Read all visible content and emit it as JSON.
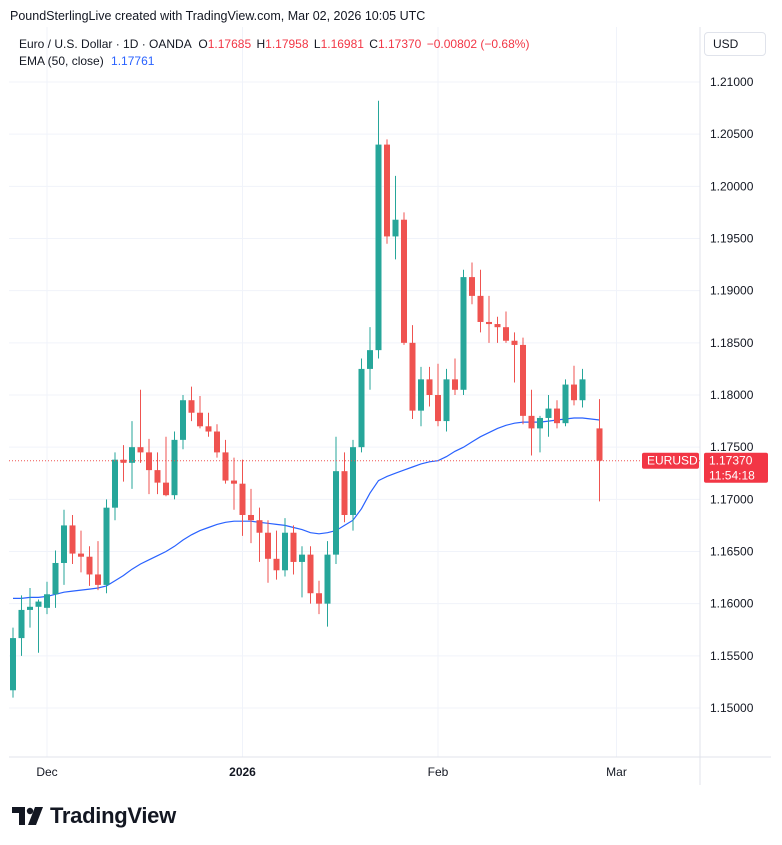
{
  "header": {
    "text": "PoundSterlingLive created with TradingView.com, Mar 02, 2026 10:05 UTC"
  },
  "legend": {
    "symbol": "Euro / U.S. Dollar · 1D · OANDA",
    "o_label": "O",
    "o_value": "1.17685",
    "h_label": "H",
    "h_value": "1.17958",
    "l_label": "L",
    "l_value": "1.16981",
    "c_label": "C",
    "c_value": "1.17370",
    "change": "−0.00802 (−0.68%)",
    "ema_label": "EMA (50, close)",
    "ema_value": "1.17761"
  },
  "currency_button": "USD",
  "price_tag": {
    "symbol": "EURUSD",
    "price": "1.17370",
    "countdown": "11:54:18"
  },
  "logo_text": "TradingView",
  "colors": {
    "up": "#26a69a",
    "down": "#ef5350",
    "ema": "#2962ff",
    "grid": "#f0f3fa"
  },
  "chart_data": {
    "type": "candlestick",
    "title": "Euro / U.S. Dollar · 1D · OANDA",
    "ylim": [
      1.1455,
      1.2155
    ],
    "y_ticks": [
      "1.21000",
      "1.20500",
      "1.20000",
      "1.19500",
      "1.19000",
      "1.18500",
      "1.18000",
      "1.17500",
      "1.17000",
      "1.16500",
      "1.16000",
      "1.15500",
      "1.15000"
    ],
    "x_ticks": [
      {
        "label": "Dec",
        "bold": false,
        "index": 4
      },
      {
        "label": "2026",
        "bold": true,
        "index": 27
      },
      {
        "label": "Feb",
        "bold": false,
        "index": 50
      },
      {
        "label": "Mar",
        "bold": false,
        "index": 71
      }
    ],
    "grid": true,
    "candles": [
      [
        1.1517,
        1.1577,
        1.151,
        1.1567
      ],
      [
        1.1567,
        1.1608,
        1.155,
        1.1594
      ],
      [
        1.1594,
        1.1615,
        1.1577,
        1.1597
      ],
      [
        1.1597,
        1.1604,
        1.1553,
        1.1602
      ],
      [
        1.1596,
        1.1621,
        1.159,
        1.1609
      ],
      [
        1.1609,
        1.1651,
        1.1596,
        1.1639
      ],
      [
        1.1639,
        1.169,
        1.1618,
        1.1675
      ],
      [
        1.1675,
        1.1685,
        1.1638,
        1.1648
      ],
      [
        1.1648,
        1.167,
        1.163,
        1.1645
      ],
      [
        1.1645,
        1.1655,
        1.1617,
        1.1628
      ],
      [
        1.1628,
        1.166,
        1.1613,
        1.1618
      ],
      [
        1.1618,
        1.17,
        1.161,
        1.1692
      ],
      [
        1.1692,
        1.1745,
        1.168,
        1.1738
      ],
      [
        1.1738,
        1.1752,
        1.1717,
        1.1735
      ],
      [
        1.1735,
        1.1775,
        1.171,
        1.175
      ],
      [
        1.175,
        1.1805,
        1.1735,
        1.1745
      ],
      [
        1.1745,
        1.1758,
        1.1705,
        1.1728
      ],
      [
        1.1728,
        1.1745,
        1.1705,
        1.1716
      ],
      [
        1.1716,
        1.176,
        1.1703,
        1.1704
      ],
      [
        1.1704,
        1.1765,
        1.17,
        1.1757
      ],
      [
        1.1757,
        1.18,
        1.1748,
        1.1795
      ],
      [
        1.1795,
        1.1808,
        1.1775,
        1.1783
      ],
      [
        1.1783,
        1.1799,
        1.1768,
        1.177
      ],
      [
        1.177,
        1.1783,
        1.176,
        1.1765
      ],
      [
        1.1765,
        1.1772,
        1.174,
        1.1745
      ],
      [
        1.1745,
        1.1757,
        1.1715,
        1.1718
      ],
      [
        1.1718,
        1.174,
        1.169,
        1.1715
      ],
      [
        1.1715,
        1.1738,
        1.1665,
        1.1685
      ],
      [
        1.1685,
        1.171,
        1.1658,
        1.168
      ],
      [
        1.168,
        1.1692,
        1.164,
        1.1668
      ],
      [
        1.1668,
        1.168,
        1.162,
        1.1643
      ],
      [
        1.1643,
        1.167,
        1.1623,
        1.1632
      ],
      [
        1.1632,
        1.1682,
        1.1626,
        1.1668
      ],
      [
        1.1668,
        1.1675,
        1.1628,
        1.164
      ],
      [
        1.164,
        1.1655,
        1.1606,
        1.1647
      ],
      [
        1.1647,
        1.1655,
        1.16,
        1.161
      ],
      [
        1.161,
        1.1622,
        1.159,
        1.16
      ],
      [
        1.16,
        1.166,
        1.1578,
        1.1647
      ],
      [
        1.1647,
        1.176,
        1.1638,
        1.1727
      ],
      [
        1.1727,
        1.1745,
        1.1678,
        1.1685
      ],
      [
        1.1685,
        1.1757,
        1.167,
        1.175
      ],
      [
        1.175,
        1.1835,
        1.1745,
        1.1825
      ],
      [
        1.1825,
        1.1865,
        1.1805,
        1.1843
      ],
      [
        1.1843,
        1.2082,
        1.1835,
        1.204
      ],
      [
        1.204,
        1.2045,
        1.1945,
        1.1952
      ],
      [
        1.1952,
        1.201,
        1.193,
        1.1968
      ],
      [
        1.1968,
        1.1975,
        1.1848,
        1.185
      ],
      [
        1.185,
        1.1867,
        1.1777,
        1.1785
      ],
      [
        1.1785,
        1.1827,
        1.177,
        1.1815
      ],
      [
        1.1815,
        1.1827,
        1.1789,
        1.18
      ],
      [
        1.18,
        1.183,
        1.177,
        1.1775
      ],
      [
        1.1775,
        1.1825,
        1.1765,
        1.1815
      ],
      [
        1.1815,
        1.1835,
        1.18,
        1.1805
      ],
      [
        1.1805,
        1.192,
        1.18,
        1.1913
      ],
      [
        1.1913,
        1.1927,
        1.1887,
        1.1895
      ],
      [
        1.1895,
        1.192,
        1.186,
        1.187
      ],
      [
        1.187,
        1.1895,
        1.185,
        1.1868
      ],
      [
        1.1868,
        1.1875,
        1.185,
        1.1865
      ],
      [
        1.1865,
        1.188,
        1.185,
        1.1852
      ],
      [
        1.1852,
        1.186,
        1.1812,
        1.1848
      ],
      [
        1.1848,
        1.1855,
        1.1772,
        1.178
      ],
      [
        1.178,
        1.1805,
        1.1742,
        1.1768
      ],
      [
        1.1768,
        1.178,
        1.1745,
        1.1778
      ],
      [
        1.1778,
        1.18,
        1.176,
        1.1787
      ],
      [
        1.1787,
        1.1795,
        1.1768,
        1.1773
      ],
      [
        1.1773,
        1.1815,
        1.177,
        1.181
      ],
      [
        1.181,
        1.1828,
        1.179,
        1.1795
      ],
      [
        1.1795,
        1.1825,
        1.1788,
        1.1815
      ],
      null,
      [
        1.1768,
        1.1796,
        1.1698,
        1.1737
      ]
    ],
    "ema": [
      1.1605,
      1.1605,
      1.1606,
      1.1606,
      1.1607,
      1.1609,
      1.1611,
      1.1612,
      1.1613,
      1.1614,
      1.1615,
      1.1617,
      1.1622,
      1.1627,
      1.1633,
      1.1638,
      1.1642,
      1.1646,
      1.165,
      1.1655,
      1.1661,
      1.1666,
      1.167,
      1.1673,
      1.1676,
      1.1678,
      1.1679,
      1.1679,
      1.1679,
      1.1678,
      1.1677,
      1.1676,
      1.1675,
      1.1673,
      1.1671,
      1.1668,
      1.1667,
      1.1668,
      1.167,
      1.1675,
      1.168,
      1.1691,
      1.1706,
      1.1718,
      1.1722,
      1.1725,
      1.1728,
      1.1731,
      1.1734,
      1.1736,
      1.1737,
      1.1741,
      1.1746,
      1.175,
      1.1755,
      1.176,
      1.1764,
      1.1768,
      1.1771,
      1.1773,
      1.1774,
      1.1774,
      1.1774,
      1.1775,
      1.1776,
      1.1777,
      1.1778,
      1.1778,
      null,
      1.1776
    ],
    "last_price": 1.1737
  }
}
